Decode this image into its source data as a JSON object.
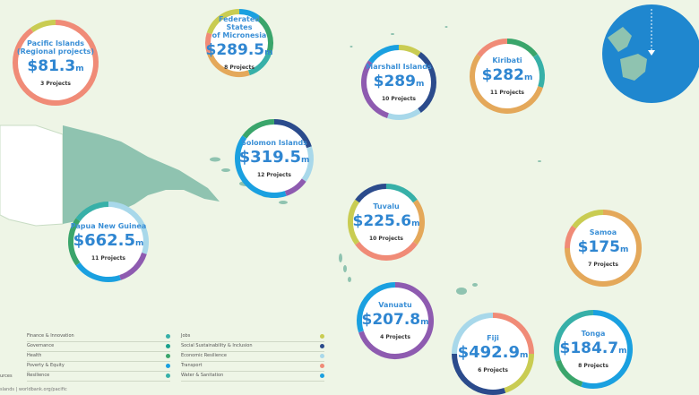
{
  "colors": {
    "ocean": "#eef5e6",
    "land": "#8fc3b0",
    "accent": "#2f86d1",
    "ring_palette": [
      "#f08b77",
      "#1aa0e0",
      "#c9cc52",
      "#3aa56b",
      "#2b4b8c",
      "#37b0a8",
      "#a8d8ea",
      "#e4a85a",
      "#8e5bb0"
    ]
  },
  "bubbles": [
    {
      "name": "Pacific Islands\n(Regional projects)",
      "amount": "$81.3",
      "unit": "m",
      "projects": "3 Projects",
      "ring": [
        0.9,
        0.1
      ]
    },
    {
      "name": "Federated States\nof Micronesia",
      "amount": "$289.5",
      "unit": "m",
      "projects": "8 Projects",
      "ring": [
        0.1,
        0.2,
        0.15,
        0.25,
        0.1,
        0.2
      ]
    },
    {
      "name": "Marshall Islands",
      "amount": "$289",
      "unit": "m",
      "projects": "10 Projects",
      "ring": [
        0.1,
        0.3,
        0.15,
        0.3,
        0.15
      ]
    },
    {
      "name": "Kiribati",
      "amount": "$282",
      "unit": "m",
      "projects": "11 Projects",
      "ring": [
        0.15,
        0.15,
        0.55,
        0.15
      ]
    },
    {
      "name": "Solomon Islands",
      "amount": "$319.5",
      "unit": "m",
      "projects": "12 Projects",
      "ring": [
        0.2,
        0.15,
        0.1,
        0.4,
        0.15
      ]
    },
    {
      "name": "Tuvalu",
      "amount": "$225.6",
      "unit": "m",
      "projects": "10 Projects",
      "ring": [
        0.15,
        0.2,
        0.3,
        0.2,
        0.15
      ]
    },
    {
      "name": "Papua New Guinea",
      "amount": "$662.5",
      "unit": "m",
      "projects": "11 Projects",
      "ring": [
        0.3,
        0.15,
        0.2,
        0.2,
        0.15
      ]
    },
    {
      "name": "Samoa",
      "amount": "$175",
      "unit": "m",
      "projects": "7 Projects",
      "ring": [
        0.75,
        0.1,
        0.15
      ]
    },
    {
      "name": "Vanuatu",
      "amount": "$207.8",
      "unit": "m",
      "projects": "4 Projects",
      "ring": [
        0.7,
        0.3
      ]
    },
    {
      "name": "Fiji",
      "amount": "$492.9",
      "unit": "m",
      "projects": "6 Projects",
      "ring": [
        0.25,
        0.2,
        0.3,
        0.25
      ]
    },
    {
      "name": "Tonga",
      "amount": "$184.7",
      "unit": "m",
      "projects": "8 Projects",
      "ring": [
        0.55,
        0.15,
        0.3
      ]
    }
  ],
  "legend": [
    {
      "label": "Finance & Innovation",
      "color": "#37b0a8"
    },
    {
      "label": "Governance",
      "color": "#1aa08c"
    },
    {
      "label": "Health",
      "color": "#3aa56b"
    },
    {
      "label": "Poverty & Equity",
      "color": "#1aa0e0"
    },
    {
      "label": "Resilience",
      "color": "#37b0a8"
    },
    {
      "label": "Jobs",
      "color": "#c9cc52"
    },
    {
      "label": "Social Sustainability & Inclusion",
      "color": "#2b4b8c"
    },
    {
      "label": "Economic Resilience",
      "color": "#a8d8ea"
    },
    {
      "label": "Transport",
      "color": "#f08b77"
    },
    {
      "label": "Water & Sanitation",
      "color": "#1aa0e0"
    }
  ],
  "legend_left_fragment": "urces",
  "footer": "slands  |  worldbank.org/pacific"
}
